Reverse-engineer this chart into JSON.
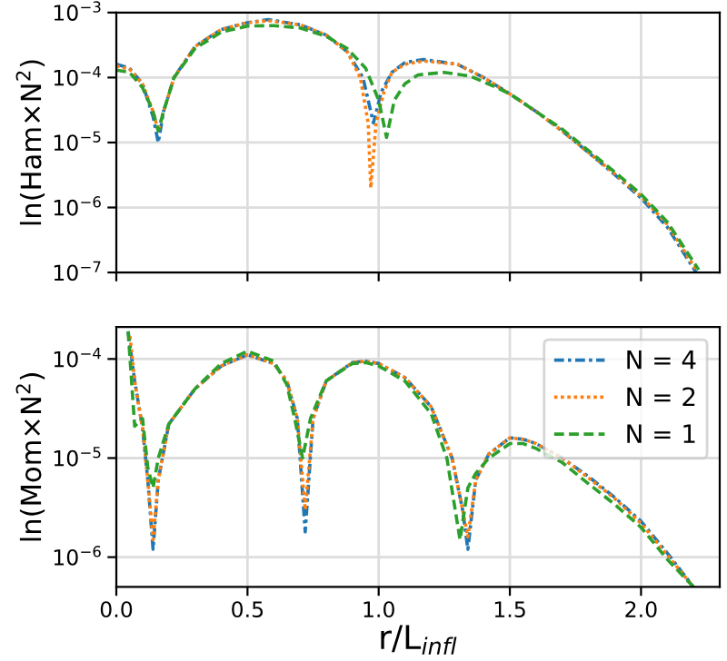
{
  "chart_data": [
    {
      "type": "line",
      "ylabel": "ln(Ham×N$^{2}$)",
      "log": "y",
      "grid": true,
      "tick_labels": "y",
      "xlim": [
        0,
        2.3
      ],
      "xticks": [
        0,
        0.5,
        1.0,
        1.5,
        2.0
      ],
      "ylim": [
        1e-07,
        0.001
      ],
      "yticks": [
        {
          "value": 1e-07,
          "label": "10$^{−7}$"
        },
        {
          "value": 1e-06,
          "label": "10$^{−6}$"
        },
        {
          "value": 1e-05,
          "label": "10$^{−5}$"
        },
        {
          "value": 0.0001,
          "label": "10$^{−4}$"
        },
        {
          "value": 0.001,
          "label": "10$^{−3}$"
        }
      ],
      "series": [
        {
          "color": "#1f77b4",
          "line_style": "dashdot",
          "x": [
            0,
            0.05,
            0.1,
            0.14,
            0.16,
            0.18,
            0.22,
            0.3,
            0.4,
            0.5,
            0.58,
            0.7,
            0.8,
            0.88,
            0.94,
            0.98,
            1.01,
            1.05,
            1.1,
            1.17,
            1.3,
            1.4,
            1.5,
            1.6,
            1.7,
            1.8,
            1.9,
            2.0,
            2.1,
            2.21
          ],
          "values": [
            0.00016,
            0.00014,
            8e-05,
            2.5e-05,
            1e-05,
            3e-05,
            0.0001,
            0.0003,
            0.00055,
            0.0007,
            0.00078,
            0.00065,
            0.00045,
            0.00025,
            0.0001,
            2e-05,
            6e-05,
            0.00012,
            0.00017,
            0.00019,
            0.00016,
            0.0001,
            5.6e-05,
            3e-05,
            1.5e-05,
            7e-06,
            3.2e-06,
            1.4e-06,
            5e-07,
            1e-07
          ]
        },
        {
          "color": "#ff7f0e",
          "line_style": "dotted",
          "x": [
            0,
            0.05,
            0.1,
            0.14,
            0.16,
            0.18,
            0.22,
            0.3,
            0.4,
            0.5,
            0.58,
            0.7,
            0.8,
            0.88,
            0.93,
            0.96,
            0.97,
            0.99,
            1.02,
            1.05,
            1.1,
            1.17,
            1.3,
            1.4,
            1.5,
            1.6,
            1.7,
            1.8,
            1.9,
            2.0,
            2.1,
            2.21
          ],
          "values": [
            0.00015,
            0.000135,
            8e-05,
            3e-05,
            1.5e-05,
            3e-05,
            0.0001,
            0.0003,
            0.00055,
            0.0007,
            0.00075,
            0.00065,
            0.00045,
            0.00025,
            0.0001,
            2e-05,
            2e-06,
            2e-05,
            6e-05,
            0.00012,
            0.00016,
            0.00018,
            0.00016,
            0.0001,
            5.6e-05,
            3e-05,
            1.5e-05,
            7e-06,
            3.3e-06,
            1.5e-06,
            5.5e-07,
            1.1e-07
          ]
        },
        {
          "color": "#2ca02c",
          "line_style": "dashed",
          "x": [
            0,
            0.05,
            0.1,
            0.14,
            0.16,
            0.18,
            0.22,
            0.3,
            0.4,
            0.5,
            0.6,
            0.7,
            0.8,
            0.88,
            0.95,
            1.0,
            1.03,
            1.06,
            1.1,
            1.15,
            1.25,
            1.35,
            1.45,
            1.5,
            1.6,
            1.7,
            1.8,
            1.9,
            2.0,
            2.1,
            2.22
          ],
          "values": [
            0.00013,
            0.00012,
            7e-05,
            3e-05,
            1.5e-05,
            3e-05,
            0.0001,
            0.00028,
            0.0005,
            0.00062,
            0.00063,
            0.00058,
            0.00043,
            0.00028,
            0.00014,
            4.5e-05,
            1.2e-05,
            4.5e-05,
            8e-05,
            0.00011,
            0.00012,
            0.000105,
            7e-05,
            5.6e-05,
            3e-05,
            1.6e-05,
            7.5e-06,
            3.5e-06,
            1.6e-06,
            6e-07,
            1.1e-07
          ]
        }
      ]
    },
    {
      "type": "line",
      "xlabel": "r/L$_{infl}$",
      "ylabel": "ln(Mom×N$^{2}$)",
      "log": "y",
      "grid": true,
      "legend": "top right",
      "xlim": [
        0,
        2.3
      ],
      "xticks": [
        {
          "value": 0,
          "label": "0.0"
        },
        0.5,
        {
          "value": 1.0,
          "label": "1.0"
        },
        1.5,
        {
          "value": 2.0,
          "label": "2.0"
        }
      ],
      "ylim": [
        5e-07,
        0.00021
      ],
      "yticks": [
        {
          "value": 1e-06,
          "label": "10$^{−6}$"
        },
        {
          "value": 1e-05,
          "label": "10$^{−5}$"
        },
        {
          "value": 0.0001,
          "label": "10$^{−4}$"
        }
      ],
      "series": [
        {
          "name": "N = 4",
          "color": "#1f77b4",
          "line_style": "dashdot",
          "x": [
            0.045,
            0.07,
            0.1,
            0.12,
            0.14,
            0.16,
            0.2,
            0.3,
            0.4,
            0.5,
            0.6,
            0.65,
            0.69,
            0.72,
            0.75,
            0.8,
            0.9,
            0.95,
            1.0,
            1.1,
            1.2,
            1.28,
            1.32,
            1.34,
            1.37,
            1.42,
            1.5,
            1.55,
            1.6,
            1.7,
            1.8,
            1.9,
            2.0,
            2.1,
            2.2
          ],
          "values": [
            0.00019,
            6e-05,
            2e-05,
            6e-06,
            1.2e-06,
            6e-06,
            2.2e-05,
            5e-05,
            8.5e-05,
            0.00011,
            9e-05,
            6e-05,
            2.5e-05,
            1.8e-06,
            2.5e-05,
            6e-05,
            9.2e-05,
            9.5e-05,
            9e-05,
            6.5e-05,
            3.3e-05,
            1e-05,
            3e-06,
            1.2e-06,
            6e-06,
            1.1e-05,
            1.6e-05,
            1.55e-05,
            1.4e-05,
            1e-05,
            6.5e-06,
            4e-06,
            2.3e-06,
            1.1e-06,
            5e-07
          ]
        },
        {
          "name": "N = 2",
          "color": "#ff7f0e",
          "line_style": "dotted",
          "x": [
            0.052,
            0.07,
            0.1,
            0.12,
            0.14,
            0.16,
            0.2,
            0.3,
            0.4,
            0.5,
            0.6,
            0.65,
            0.69,
            0.72,
            0.75,
            0.8,
            0.9,
            0.95,
            1.0,
            1.1,
            1.2,
            1.28,
            1.32,
            1.34,
            1.37,
            1.42,
            1.5,
            1.55,
            1.6,
            1.7,
            1.8,
            1.9,
            2.0,
            2.1,
            2.2
          ],
          "values": [
            0.00017,
            6e-05,
            2e-05,
            6e-06,
            1.5e-06,
            6e-06,
            2.2e-05,
            5e-05,
            8.5e-05,
            0.00011,
            9e-05,
            6e-05,
            2.5e-05,
            3e-06,
            2.5e-05,
            6e-05,
            9.2e-05,
            9.5e-05,
            9e-05,
            6.5e-05,
            3.3e-05,
            1e-05,
            3e-06,
            1.6e-06,
            6e-06,
            1.1e-05,
            1.6e-05,
            1.55e-05,
            1.4e-05,
            1e-05,
            6.3e-06,
            3.9e-06,
            2.2e-06,
            1.05e-06,
            5e-07
          ]
        },
        {
          "name": "N = 1",
          "color": "#2ca02c",
          "line_style": "dashed",
          "x": [
            0.045,
            0.07,
            0.1,
            0.12,
            0.14,
            0.16,
            0.2,
            0.3,
            0.4,
            0.5,
            0.6,
            0.65,
            0.68,
            0.71,
            0.74,
            0.8,
            0.9,
            0.95,
            1.0,
            1.1,
            1.2,
            1.26,
            1.31,
            1.34,
            1.37,
            1.42,
            1.5,
            1.55,
            1.6,
            1.7,
            1.8,
            1.9,
            2.0,
            2.1,
            2.2
          ],
          "values": [
            0.00019,
            2.1e-05,
            2.5e-05,
            8e-06,
            5e-06,
            1e-05,
            2.2e-05,
            5e-05,
            9e-05,
            0.00012,
            9.5e-05,
            5.5e-05,
            2.5e-05,
            1e-05,
            2.5e-05,
            6e-05,
            9e-05,
            9.2e-05,
            8.5e-05,
            6e-05,
            2.8e-05,
            1e-05,
            1.5e-06,
            5e-06,
            7e-06,
            1e-05,
            1.4e-05,
            1.4e-05,
            1.25e-05,
            9e-06,
            5.5e-06,
            3.4e-06,
            2e-06,
            9.5e-07,
            5e-07
          ]
        }
      ]
    }
  ]
}
